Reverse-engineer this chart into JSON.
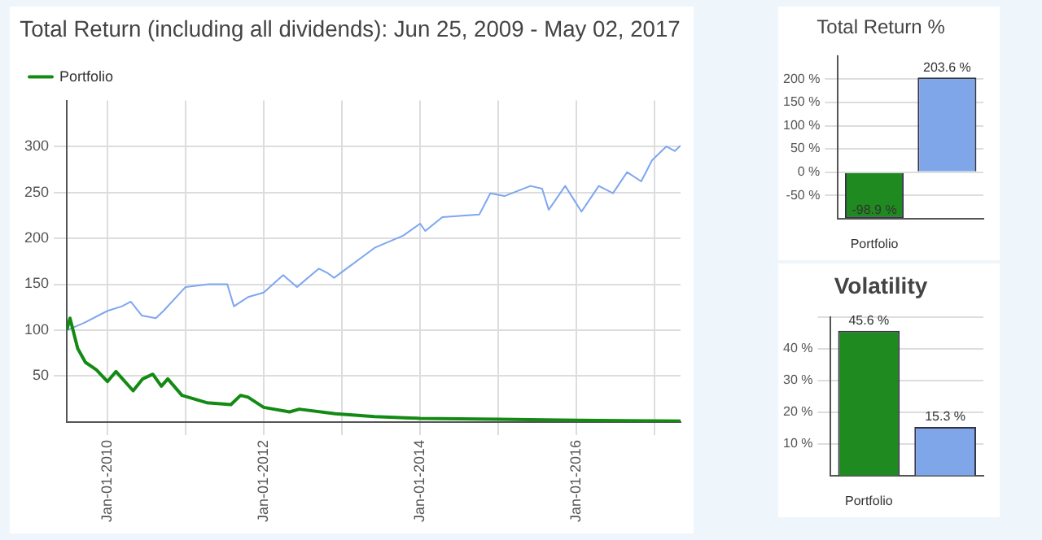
{
  "chart_data": [
    {
      "type": "line",
      "title": "Total Return (including all dividends): Jun 25, 2009 - May 02, 2017",
      "xlim": [
        "2009-06-25",
        "2017-05-02"
      ],
      "ylim": [
        0,
        350
      ],
      "xticks": [
        {
          "value": "2010-01-01",
          "label": "Jan-01-2010"
        },
        {
          "value": "2011-01-01",
          "label": null
        },
        {
          "value": "2012-01-01",
          "label": "Jan-01-2012"
        },
        {
          "value": "2013-01-01",
          "label": null
        },
        {
          "value": "2014-01-01",
          "label": "Jan-01-2014"
        },
        {
          "value": "2015-01-01",
          "label": null
        },
        {
          "value": "2016-01-01",
          "label": "Jan-01-2016"
        },
        {
          "value": "2017-01-01",
          "label": null
        }
      ],
      "yticks": [
        50,
        100,
        150,
        200,
        250,
        300
      ],
      "grid": true,
      "legend": "top left",
      "marker": "none",
      "line_style": "solid",
      "series": [
        {
          "name": "Portfolio",
          "color": "#138a13",
          "x": [
            "2009-06-25",
            "2009-07-10",
            "2009-08-15",
            "2009-09-20",
            "2009-11-10",
            "2010-01-01",
            "2010-02-10",
            "2010-05-01",
            "2010-06-15",
            "2010-08-01",
            "2010-09-10",
            "2010-10-10",
            "2010-12-15",
            "2011-04-10",
            "2011-08-01",
            "2011-09-15",
            "2011-10-20",
            "2012-01-01",
            "2012-05-01",
            "2012-06-15",
            "2012-12-01",
            "2013-06-01",
            "2014-01-01",
            "2015-01-01",
            "2016-01-01",
            "2017-05-02"
          ],
          "values": [
            100,
            113,
            80,
            65,
            57,
            44,
            55,
            34,
            47,
            52,
            39,
            47,
            29,
            21,
            19,
            29,
            27,
            16,
            11,
            14,
            9,
            6,
            4,
            3,
            2,
            1
          ]
        },
        {
          "color": "#7ea6f0",
          "x": [
            "2009-06-25",
            "2009-09-15",
            "2010-01-01",
            "2010-03-10",
            "2010-04-20",
            "2010-06-10",
            "2010-08-15",
            "2010-09-20",
            "2011-01-01",
            "2011-04-20",
            "2011-07-15",
            "2011-08-15",
            "2011-10-20",
            "2012-01-01",
            "2012-04-01",
            "2012-06-05",
            "2012-09-15",
            "2012-10-27",
            "2012-11-25",
            "2013-06-05",
            "2013-10-15",
            "2014-01-01",
            "2014-01-25",
            "2014-04-15",
            "2014-10-05",
            "2014-11-25",
            "2015-01-30",
            "2015-06-01",
            "2015-07-25",
            "2015-08-25",
            "2015-11-10",
            "2016-01-25",
            "2016-04-15",
            "2016-06-20",
            "2016-08-25",
            "2016-10-30",
            "2016-12-20",
            "2017-02-25",
            "2017-04-05",
            "2017-05-02"
          ],
          "values": [
            100,
            108,
            121,
            126,
            131,
            116,
            113,
            121,
            147,
            150,
            150,
            126,
            136,
            141,
            160,
            147,
            167,
            162,
            157,
            190,
            203,
            216,
            208,
            223,
            226,
            249,
            246,
            257,
            254,
            231,
            257,
            229,
            257,
            249,
            272,
            262,
            285,
            300,
            295,
            301
          ]
        }
      ]
    },
    {
      "type": "bar",
      "title": "Total Return %",
      "categories": [
        "Portfolio",
        null
      ],
      "values": [
        -98.9,
        203.6
      ],
      "colors": [
        "#1f8a1f",
        "#7ea6e8"
      ],
      "value_labels": [
        "-98.9 %",
        "203.6 %"
      ],
      "ylim": [
        -100,
        250
      ],
      "yticks": [
        {
          "value": -50,
          "label": "-50 %"
        },
        {
          "value": 0,
          "label": "0 %"
        },
        {
          "value": 50,
          "label": "50 %"
        },
        {
          "value": 100,
          "label": "100 %"
        },
        {
          "value": 150,
          "label": "150 %"
        },
        {
          "value": 200,
          "label": "200 %"
        }
      ],
      "grid": "y"
    },
    {
      "type": "bar",
      "title": "Volatility",
      "categories": [
        "Portfolio",
        null
      ],
      "values": [
        45.6,
        15.3
      ],
      "colors": [
        "#1f8a1f",
        "#7ea6e8"
      ],
      "value_labels": [
        "45.6 %",
        "15.3 %"
      ],
      "ylim": [
        0,
        50
      ],
      "yticks": [
        {
          "value": 10,
          "label": "10 %"
        },
        {
          "value": 20,
          "label": "20 %"
        },
        {
          "value": 30,
          "label": "30 %"
        },
        {
          "value": 40,
          "label": "40 %"
        },
        {
          "value": 50,
          "label": null
        }
      ],
      "grid": "y"
    }
  ]
}
